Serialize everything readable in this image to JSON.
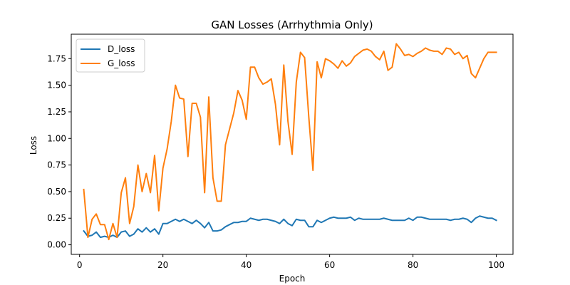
{
  "chart_data": {
    "type": "line",
    "title": "GAN Losses (Arrhythmia Only)",
    "xlabel": "Epoch",
    "ylabel": "Loss",
    "xlim": [
      -2,
      104
    ],
    "ylim": [
      -0.09,
      1.98
    ],
    "xticks": [
      0,
      20,
      40,
      60,
      80,
      100
    ],
    "xtick_labels": [
      "0",
      "20",
      "40",
      "60",
      "80",
      "100"
    ],
    "yticks": [
      0.0,
      0.25,
      0.5,
      0.75,
      1.0,
      1.25,
      1.5,
      1.75
    ],
    "ytick_labels": [
      "0.00",
      "0.25",
      "0.50",
      "0.75",
      "1.00",
      "1.25",
      "1.50",
      "1.75"
    ],
    "grid": false,
    "legend_position": "top-left",
    "x": [
      1,
      2,
      3,
      4,
      5,
      6,
      7,
      8,
      9,
      10,
      11,
      12,
      13,
      14,
      15,
      16,
      17,
      18,
      19,
      20,
      21,
      22,
      23,
      24,
      25,
      26,
      27,
      28,
      29,
      30,
      31,
      32,
      33,
      34,
      35,
      36,
      37,
      38,
      39,
      40,
      41,
      42,
      43,
      44,
      45,
      46,
      47,
      48,
      49,
      50,
      51,
      52,
      53,
      54,
      55,
      56,
      57,
      58,
      59,
      60,
      61,
      62,
      63,
      64,
      65,
      66,
      67,
      68,
      69,
      70,
      71,
      72,
      73,
      74,
      75,
      76,
      77,
      78,
      79,
      80,
      81,
      82,
      83,
      84,
      85,
      86,
      87,
      88,
      89,
      90,
      91,
      92,
      93,
      94,
      95,
      96,
      97,
      98,
      99,
      100
    ],
    "series": [
      {
        "name": "D_loss",
        "color": "#1f77b4",
        "values": [
          0.13,
          0.08,
          0.09,
          0.12,
          0.07,
          0.08,
          0.07,
          0.09,
          0.07,
          0.12,
          0.13,
          0.08,
          0.1,
          0.15,
          0.12,
          0.16,
          0.12,
          0.15,
          0.1,
          0.2,
          0.2,
          0.22,
          0.24,
          0.22,
          0.24,
          0.22,
          0.2,
          0.23,
          0.2,
          0.16,
          0.21,
          0.13,
          0.13,
          0.14,
          0.17,
          0.19,
          0.21,
          0.21,
          0.22,
          0.22,
          0.25,
          0.24,
          0.23,
          0.24,
          0.24,
          0.23,
          0.22,
          0.2,
          0.24,
          0.2,
          0.18,
          0.24,
          0.23,
          0.23,
          0.17,
          0.17,
          0.23,
          0.21,
          0.23,
          0.25,
          0.26,
          0.25,
          0.25,
          0.25,
          0.26,
          0.23,
          0.25,
          0.24,
          0.24,
          0.24,
          0.24,
          0.24,
          0.25,
          0.24,
          0.23,
          0.23,
          0.23,
          0.23,
          0.25,
          0.23,
          0.26,
          0.26,
          0.25,
          0.24,
          0.24,
          0.24,
          0.24,
          0.24,
          0.23,
          0.24,
          0.24,
          0.25,
          0.24,
          0.21,
          0.25,
          0.27,
          0.26,
          0.25,
          0.25,
          0.23
        ]
      },
      {
        "name": "G_loss",
        "color": "#ff7f0e",
        "values": [
          0.52,
          0.07,
          0.24,
          0.29,
          0.19,
          0.19,
          0.05,
          0.2,
          0.07,
          0.49,
          0.63,
          0.2,
          0.36,
          0.75,
          0.5,
          0.67,
          0.49,
          0.84,
          0.32,
          0.72,
          0.9,
          1.16,
          1.5,
          1.38,
          1.37,
          0.83,
          1.33,
          1.33,
          1.2,
          0.49,
          1.39,
          0.63,
          0.41,
          0.41,
          0.94,
          1.09,
          1.24,
          1.45,
          1.36,
          1.18,
          1.67,
          1.67,
          1.57,
          1.51,
          1.53,
          1.56,
          1.32,
          0.94,
          1.69,
          1.16,
          0.85,
          1.53,
          1.81,
          1.76,
          1.2,
          0.7,
          1.72,
          1.57,
          1.75,
          1.73,
          1.7,
          1.66,
          1.73,
          1.68,
          1.71,
          1.77,
          1.8,
          1.83,
          1.84,
          1.82,
          1.77,
          1.74,
          1.82,
          1.64,
          1.67,
          1.89,
          1.84,
          1.78,
          1.79,
          1.77,
          1.8,
          1.82,
          1.85,
          1.83,
          1.82,
          1.82,
          1.79,
          1.85,
          1.84,
          1.79,
          1.81,
          1.75,
          1.78,
          1.61,
          1.57,
          1.66,
          1.75,
          1.81,
          1.81,
          1.81
        ]
      }
    ]
  }
}
